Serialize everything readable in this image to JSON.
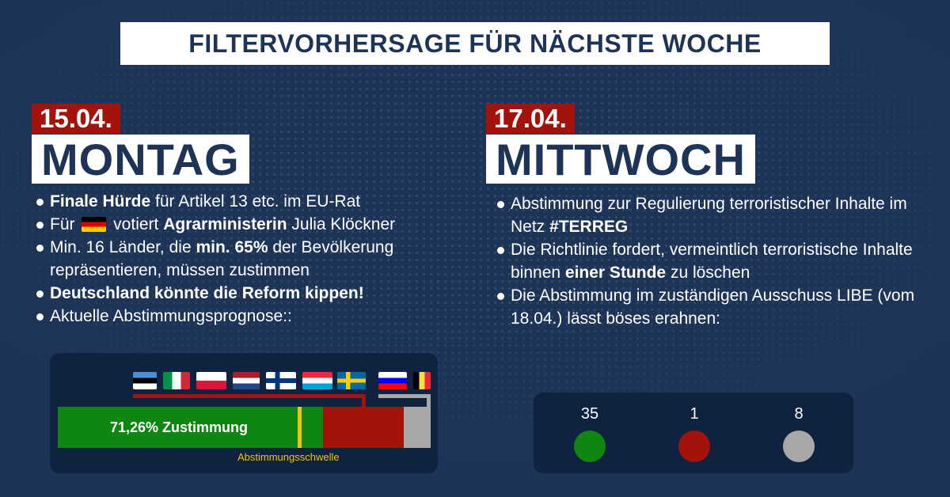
{
  "title": "FILTERVORHERSAGE FÜR NÄCHSTE WOCHE",
  "left": {
    "date": "15.04.",
    "day": "MONTAG",
    "bullets": [
      {
        "bold": "Finale Hürde",
        "text": " für Artikel 13 etc. im EU-Rat"
      },
      {
        "pre": "Für ",
        "flag_icon": "germany-flag",
        "mid": " votiert ",
        "bold": "Agrarministerin",
        "post": " Julia Klöckner"
      },
      {
        "pre": "Min. 16 Länder, die ",
        "bold": "min. 65%",
        "post": " der Bevölkerung repräsentieren, müssen zustimmen"
      },
      {
        "bold": "Deutschland könnte die Reform kippen!"
      },
      {
        "text": "Aktuelle Abstimmungsprognose::"
      }
    ],
    "forecast": {
      "approval_label": "71,26% Zustimmung",
      "threshold_label": "Abstimmungsschwelle",
      "approval_percent": 71.26,
      "threshold_percent": 65,
      "colors": {
        "approve": "#0f8512",
        "against": "#a3130c",
        "abstain": "#a8a8a8",
        "threshold": "#f2c500"
      },
      "against_flags": [
        "estonia-flag",
        "italy-flag",
        "poland-flag",
        "netherlands-flag",
        "finland-flag",
        "luxembourg-flag",
        "sweden-flag"
      ],
      "abstain_flags": [
        "slovenia-flag",
        "belgium-flag"
      ]
    }
  },
  "right": {
    "date": "17.04.",
    "day": "MITTWOCH",
    "bullets": [
      {
        "pre": "Abstimmung zur Regulierung terroristischer Inhalte im Netz ",
        "bold": "#TERREG"
      },
      {
        "pre": "Die Richtlinie fordert, vermeintlich terroristische Inhalte binnen ",
        "bold": "einer Stunde",
        "post": " zu löschen"
      },
      {
        "text": "Die Abstimmung im zuständigen Ausschuss LIBE (vom 18.04.) lässt böses erahnen:"
      }
    ],
    "votes": [
      {
        "count": "35",
        "color": "#0f8512"
      },
      {
        "count": "1",
        "color": "#a3130c"
      },
      {
        "count": "8",
        "color": "#a8a8a8"
      }
    ]
  }
}
